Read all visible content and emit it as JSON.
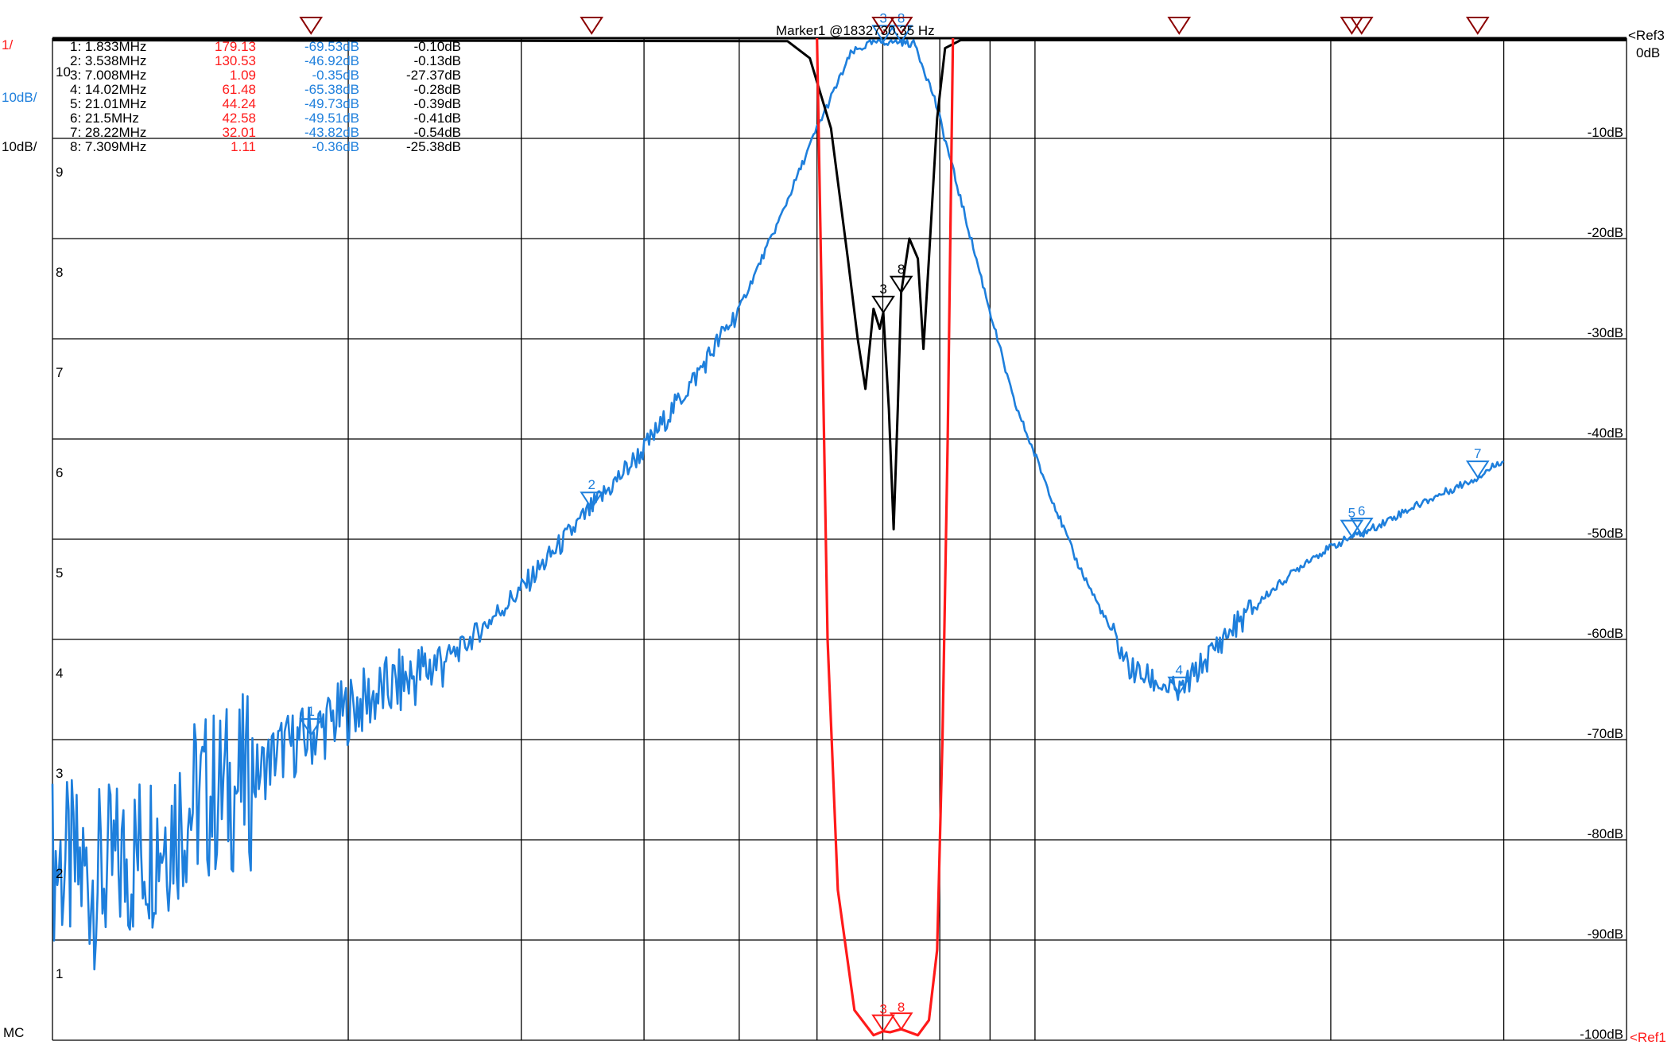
{
  "colors": {
    "s21": "#1e7fdc",
    "s11": "#000000",
    "vswr": "#ff1a1a",
    "grid": "#000000",
    "marker_top": "#8b0000",
    "marker_top_light": "#ff2a2a"
  },
  "header": {
    "marker_title": "Marker1 @1832730.35 Hz",
    "scale_vswr": "1/",
    "scale_s21": "10dB/",
    "scale_s11": "10dB/",
    "ref_right_top": "<Ref3",
    "ref_right_top2": "0dB",
    "ref_right_bottom": "<Ref1",
    "bottom_left": "MC"
  },
  "marker_table": [
    {
      "label": "1: 1.833MHz",
      "vswr": "179.13",
      "s21": "-69.53dB",
      "s11": "-0.10dB"
    },
    {
      "label": "2: 3.538MHz",
      "vswr": "130.53",
      "s21": "-46.92dB",
      "s11": "-0.13dB"
    },
    {
      "label": "3: 7.008MHz",
      "vswr": "1.09",
      "s21": "-0.35dB",
      "s11": "-27.37dB"
    },
    {
      "label": "4: 14.02MHz",
      "vswr": "61.48",
      "s21": "-65.38dB",
      "s11": "-0.28dB"
    },
    {
      "label": "5: 21.01MHz",
      "vswr": "44.24",
      "s21": "-49.73dB",
      "s11": "-0.39dB"
    },
    {
      "label": "6: 21.5MHz",
      "vswr": "42.58",
      "s21": "-49.51dB",
      "s11": "-0.41dB"
    },
    {
      "label": "7: 28.22MHz",
      "vswr": "32.01",
      "s21": "-43.82dB",
      "s11": "-0.54dB"
    },
    {
      "label": "8: 7.309MHz",
      "vswr": "1.11",
      "s21": "-0.36dB",
      "s11": "-25.38dB"
    }
  ],
  "chart_data": {
    "type": "line",
    "x_scale": "log",
    "x_unit": "MHz",
    "xlim": [
      1.0,
      40.0
    ],
    "y_left_ticks": [
      "10",
      "9",
      "8",
      "7",
      "6",
      "5",
      "4",
      "3",
      "2",
      "1"
    ],
    "y_right_ticks": [
      "-10dB",
      "-20dB",
      "-30dB",
      "-40dB",
      "-50dB",
      "-60dB",
      "-70dB",
      "-80dB",
      "-90dB",
      "-100dB"
    ],
    "ylim_db": [
      -100,
      0
    ],
    "ylim_vswr": [
      1,
      11
    ],
    "grid": true,
    "series": [
      {
        "key": "s21",
        "points": [
          [
            1.0,
            -82
          ],
          [
            1.1,
            -84
          ],
          [
            1.2,
            -82
          ],
          [
            1.3,
            -79
          ],
          [
            1.4,
            -76
          ],
          [
            1.5,
            -75
          ],
          [
            1.6,
            -74
          ],
          [
            1.7,
            -71
          ],
          [
            1.8,
            -70
          ],
          [
            1.833,
            -69.53
          ],
          [
            2.0,
            -67
          ],
          [
            2.3,
            -64
          ],
          [
            2.6,
            -61
          ],
          [
            3.0,
            -55
          ],
          [
            3.538,
            -46.92
          ],
          [
            4.0,
            -41
          ],
          [
            4.5,
            -34
          ],
          [
            5.0,
            -27
          ],
          [
            5.5,
            -18
          ],
          [
            6.0,
            -9
          ],
          [
            6.5,
            -1.5
          ],
          [
            6.8,
            -0.5
          ],
          [
            7.008,
            -0.35
          ],
          [
            7.309,
            -0.36
          ],
          [
            7.55,
            -0.6
          ],
          [
            7.9,
            -6
          ],
          [
            8.5,
            -18
          ],
          [
            9.5,
            -36
          ],
          [
            11.0,
            -52
          ],
          [
            12.5,
            -63
          ],
          [
            14.02,
            -65.38
          ],
          [
            15.5,
            -60
          ],
          [
            17.0,
            -56
          ],
          [
            19.0,
            -52
          ],
          [
            21.01,
            -49.73
          ],
          [
            21.5,
            -49.51
          ],
          [
            24.0,
            -47
          ],
          [
            28.22,
            -43.82
          ],
          [
            30.0,
            -42
          ]
        ]
      },
      {
        "key": "s11",
        "points": [
          [
            1.0,
            -0.2
          ],
          [
            5.6,
            -0.3
          ],
          [
            5.9,
            -2
          ],
          [
            6.2,
            -9
          ],
          [
            6.45,
            -22
          ],
          [
            6.6,
            -30
          ],
          [
            6.72,
            -35
          ],
          [
            6.85,
            -27
          ],
          [
            6.95,
            -29
          ],
          [
            7.008,
            -27.37
          ],
          [
            7.1,
            -37
          ],
          [
            7.18,
            -49
          ],
          [
            7.25,
            -37
          ],
          [
            7.309,
            -25.38
          ],
          [
            7.45,
            -20
          ],
          [
            7.6,
            -22
          ],
          [
            7.7,
            -31
          ],
          [
            7.8,
            -22
          ],
          [
            7.95,
            -8
          ],
          [
            8.1,
            -1
          ],
          [
            8.4,
            -0.2
          ],
          [
            40.0,
            -0.2
          ]
        ]
      },
      {
        "key": "vswr",
        "points": [
          [
            6.0,
            11
          ],
          [
            6.05,
            9
          ],
          [
            6.15,
            5
          ],
          [
            6.3,
            2.5
          ],
          [
            6.55,
            1.3
          ],
          [
            6.85,
            1.05
          ],
          [
            7.008,
            1.09
          ],
          [
            7.12,
            1.08
          ],
          [
            7.309,
            1.11
          ],
          [
            7.6,
            1.05
          ],
          [
            7.8,
            1.2
          ],
          [
            7.95,
            1.9
          ],
          [
            8.05,
            4
          ],
          [
            8.15,
            7
          ],
          [
            8.25,
            11
          ]
        ]
      }
    ],
    "markers": [
      {
        "id": "1",
        "x": 1.833,
        "s21": -69.53,
        "s11": -0.1,
        "vswr": 179.13
      },
      {
        "id": "2",
        "x": 3.538,
        "s21": -46.92,
        "s11": -0.13,
        "vswr": 130.53
      },
      {
        "id": "3",
        "x": 7.008,
        "s21": -0.35,
        "s11": -27.37,
        "vswr": 1.09
      },
      {
        "id": "4",
        "x": 14.02,
        "s21": -65.38,
        "s11": -0.28,
        "vswr": 61.48
      },
      {
        "id": "5",
        "x": 21.01,
        "s21": -49.73,
        "s11": -0.39,
        "vswr": 44.24
      },
      {
        "id": "6",
        "x": 21.5,
        "s21": -49.51,
        "s11": -0.41,
        "vswr": 42.58
      },
      {
        "id": "7",
        "x": 28.22,
        "s21": -43.82,
        "s11": -0.54,
        "vswr": 32.01
      },
      {
        "id": "8",
        "x": 7.309,
        "s21": -0.36,
        "s11": -25.38,
        "vswr": 1.11
      }
    ]
  }
}
